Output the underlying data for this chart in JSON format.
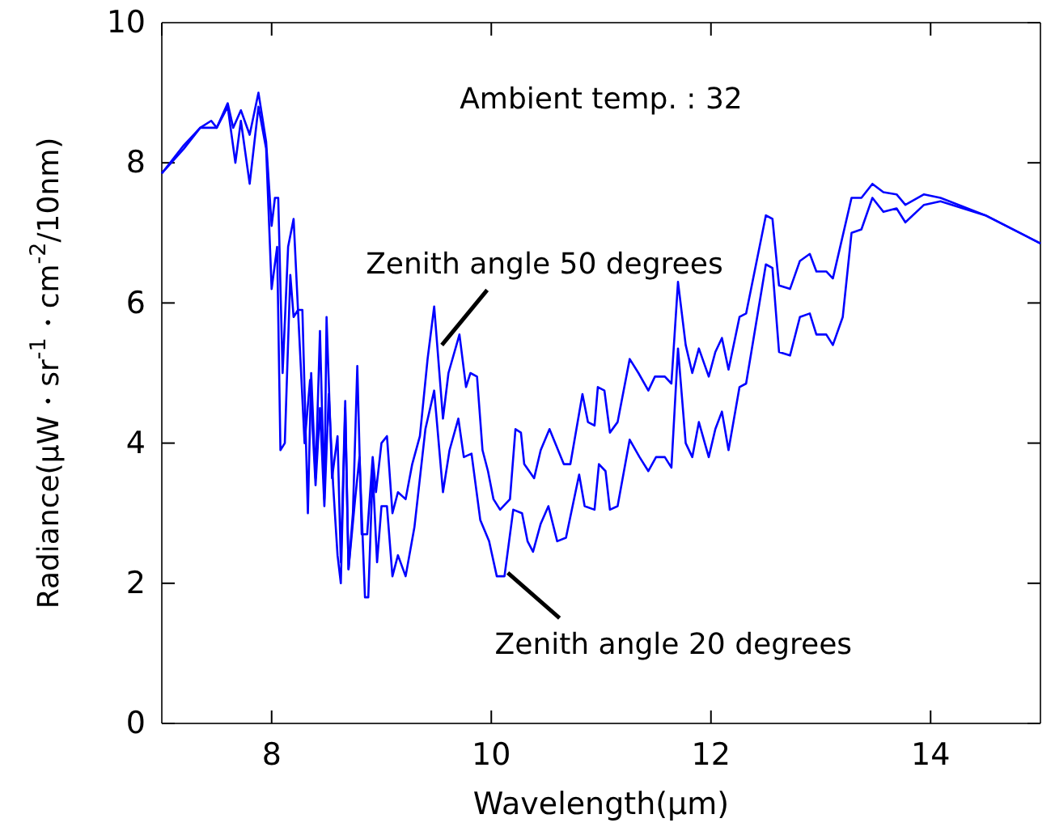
{
  "chart_data": {
    "type": "line",
    "xlabel": "Wavelength(μm)",
    "ylabel": "Radiance(μW・sr$^{-1}$・cm$^{-2}$/10nm)",
    "xlim": [
      7,
      15
    ],
    "xticks": [
      {
        "value": 7,
        "label": null
      },
      8,
      10,
      12,
      14,
      {
        "value": 15,
        "label": null
      }
    ],
    "ylim": [
      0,
      10
    ],
    "yticks": [
      0,
      2,
      4,
      6,
      8,
      10
    ],
    "grid": false,
    "marker": "none",
    "line_style": "solid",
    "annotations": [
      "Ambient temp. : 32",
      {
        "text": "Zenith angle 50 degrees",
        "x": 9.55,
        "y": 5.4
      },
      {
        "text": "Zenith angle 20 degrees",
        "x": 10.15,
        "y": 2.15
      }
    ],
    "series": [
      {
        "color": "#0000ff",
        "x": [
          7.0,
          7.2,
          7.35,
          7.45,
          7.5,
          7.6,
          7.65,
          7.72,
          7.8,
          7.88,
          7.95,
          8.0,
          8.03,
          8.06,
          8.1,
          8.15,
          8.2,
          8.24,
          8.28,
          8.33,
          8.36,
          8.4,
          8.44,
          8.48,
          8.5,
          8.55,
          8.6,
          8.63,
          8.67,
          8.7,
          8.74,
          8.78,
          8.82,
          8.87,
          8.92,
          8.95,
          9.0,
          9.05,
          9.1,
          9.15,
          9.22,
          9.28,
          9.35,
          9.42,
          9.48,
          9.56,
          9.61,
          9.71,
          9.77,
          9.81,
          9.87,
          9.92,
          9.97,
          10.02,
          10.08,
          10.17,
          10.22,
          10.27,
          10.3,
          10.39,
          10.45,
          10.53,
          10.66,
          10.72,
          10.83,
          10.88,
          10.94,
          10.97,
          11.03,
          11.08,
          11.15,
          11.26,
          11.34,
          11.43,
          11.49,
          11.58,
          11.64,
          11.7,
          11.77,
          11.83,
          11.89,
          11.98,
          12.04,
          12.1,
          12.16,
          12.26,
          12.32,
          12.5,
          12.56,
          12.62,
          12.72,
          12.81,
          12.9,
          12.96,
          13.05,
          13.11,
          13.28,
          13.37,
          13.47,
          13.57,
          13.69,
          13.77,
          13.94,
          14.09,
          14.5,
          15.0
        ],
        "values": [
          7.85,
          8.25,
          8.5,
          8.6,
          8.5,
          8.85,
          8.5,
          8.75,
          8.4,
          9.0,
          8.3,
          7.1,
          7.5,
          7.5,
          5.0,
          6.8,
          7.2,
          5.9,
          5.9,
          3.0,
          5.0,
          3.5,
          5.6,
          3.2,
          5.8,
          3.5,
          4.1,
          2.3,
          4.6,
          2.2,
          3.0,
          5.1,
          2.7,
          2.7,
          3.8,
          3.3,
          4.0,
          4.1,
          3.0,
          3.3,
          3.2,
          3.7,
          4.1,
          5.2,
          5.95,
          4.35,
          5.0,
          5.55,
          4.8,
          5.0,
          4.95,
          3.9,
          3.6,
          3.2,
          3.05,
          3.2,
          4.2,
          4.15,
          3.7,
          3.5,
          3.9,
          4.2,
          3.7,
          3.7,
          4.7,
          4.3,
          4.25,
          4.8,
          4.75,
          4.15,
          4.3,
          5.2,
          5.0,
          4.75,
          4.95,
          4.95,
          4.85,
          6.3,
          5.4,
          5.0,
          5.35,
          4.95,
          5.3,
          5.5,
          5.05,
          5.8,
          5.85,
          7.25,
          7.2,
          6.25,
          6.2,
          6.6,
          6.7,
          6.45,
          6.45,
          6.35,
          7.5,
          7.5,
          7.7,
          7.58,
          7.55,
          7.4,
          7.55,
          7.5,
          7.25,
          6.85
        ]
      },
      {
        "color": "#0000ff",
        "x": [
          7.0,
          7.2,
          7.35,
          7.5,
          7.6,
          7.67,
          7.72,
          7.8,
          7.88,
          7.95,
          8.0,
          8.05,
          8.08,
          8.12,
          8.17,
          8.2,
          8.24,
          8.3,
          8.35,
          8.4,
          8.44,
          8.48,
          8.52,
          8.56,
          8.6,
          8.63,
          8.67,
          8.7,
          8.76,
          8.8,
          8.85,
          8.88,
          8.92,
          8.96,
          9.0,
          9.05,
          9.1,
          9.15,
          9.22,
          9.3,
          9.4,
          9.48,
          9.56,
          9.62,
          9.7,
          9.75,
          9.82,
          9.9,
          9.98,
          10.05,
          10.12,
          10.2,
          10.28,
          10.33,
          10.38,
          10.45,
          10.52,
          10.6,
          10.68,
          10.8,
          10.85,
          10.94,
          10.98,
          11.04,
          11.08,
          11.15,
          11.26,
          11.35,
          11.43,
          11.5,
          11.58,
          11.64,
          11.7,
          11.77,
          11.83,
          11.89,
          11.98,
          12.04,
          12.1,
          12.16,
          12.26,
          12.32,
          12.5,
          12.56,
          12.62,
          12.72,
          12.81,
          12.9,
          12.96,
          13.05,
          13.11,
          13.2,
          13.28,
          13.37,
          13.47,
          13.57,
          13.69,
          13.77,
          13.94,
          14.09,
          14.5,
          15.0
        ],
        "values": [
          7.85,
          8.2,
          8.5,
          8.5,
          8.8,
          8.0,
          8.6,
          7.7,
          8.8,
          8.2,
          6.2,
          6.8,
          3.9,
          4.0,
          6.4,
          5.8,
          5.9,
          4.0,
          4.9,
          3.4,
          4.5,
          3.1,
          4.7,
          3.4,
          2.4,
          2.0,
          4.5,
          2.2,
          3.2,
          3.8,
          1.8,
          1.8,
          3.6,
          2.3,
          3.1,
          3.1,
          2.1,
          2.4,
          2.1,
          2.8,
          4.2,
          4.75,
          3.3,
          3.9,
          4.35,
          3.8,
          3.85,
          2.9,
          2.6,
          2.1,
          2.1,
          3.05,
          3.0,
          2.6,
          2.45,
          2.85,
          3.1,
          2.6,
          2.65,
          3.55,
          3.1,
          3.05,
          3.7,
          3.6,
          3.05,
          3.1,
          4.05,
          3.8,
          3.6,
          3.8,
          3.8,
          3.65,
          5.35,
          4.0,
          3.8,
          4.3,
          3.8,
          4.2,
          4.45,
          3.9,
          4.8,
          4.85,
          6.55,
          6.5,
          5.3,
          5.25,
          5.8,
          5.85,
          5.55,
          5.55,
          5.4,
          5.8,
          7.0,
          7.05,
          7.5,
          7.3,
          7.35,
          7.15,
          7.4,
          7.45,
          7.25,
          6.85
        ]
      }
    ]
  }
}
